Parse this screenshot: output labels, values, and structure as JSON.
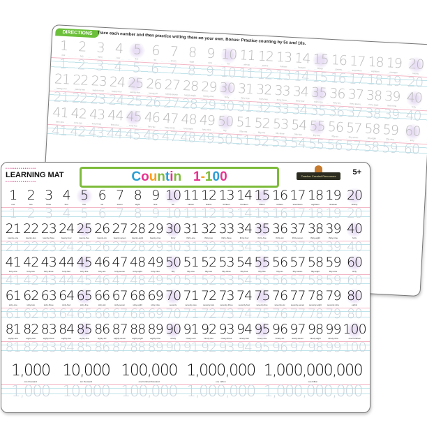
{
  "back_mat": {
    "directions_label": "DIRECTIONS",
    "directions_text": "Trace each number and then practice writing them on your own. Bonus: Practice counting by 5s and 10s."
  },
  "front_mat": {
    "brand_label": "LEARNING MAT",
    "title": "Counting 1-100",
    "title_letter_colors": [
      "#2a9fd6",
      "#e8318f",
      "#f7a21b",
      "#7dbb3a",
      "#2a9fd6",
      "#e8318f",
      "#7dbb3a",
      "#ffffff",
      "#2a9fd6",
      "#e8318f",
      "#f7a21b",
      "#7dbb3a",
      "#2a9fd6",
      "#e8318f"
    ],
    "publisher_logo": "Teacher Created Resources",
    "age": "5+"
  },
  "numbers": [
    "one",
    "two",
    "three",
    "four",
    "five",
    "six",
    "seven",
    "eight",
    "nine",
    "ten",
    "eleven",
    "twelve",
    "thirteen",
    "fourteen",
    "fifteen",
    "sixteen",
    "seventeen",
    "eighteen",
    "nineteen",
    "twenty",
    "twenty-one",
    "twenty-two",
    "twenty-three",
    "twenty-four",
    "twenty-five",
    "twenty-six",
    "twenty-seven",
    "twenty-eight",
    "twenty-nine",
    "thirty",
    "thirty-one",
    "thirty-two",
    "thirty-three",
    "thirty-four",
    "thirty-five",
    "thirty-six",
    "thirty-seven",
    "thirty-eight",
    "thirty-nine",
    "forty",
    "forty-one",
    "forty-two",
    "forty-three",
    "forty-four",
    "forty-five",
    "forty-six",
    "forty-seven",
    "forty-eight",
    "forty-nine",
    "fifty",
    "fifty-one",
    "fifty-two",
    "fifty-three",
    "fifty-four",
    "fifty-five",
    "fifty-six",
    "fifty-seven",
    "fifty-eight",
    "fifty-nine",
    "sixty",
    "sixty-one",
    "sixty-two",
    "sixty-three",
    "sixty-four",
    "sixty-five",
    "sixty-six",
    "sixty-seven",
    "sixty-eight",
    "sixty-nine",
    "seventy",
    "seventy-one",
    "seventy-two",
    "seventy-three",
    "seventy-four",
    "seventy-five",
    "seventy-six",
    "seventy-seven",
    "seventy-eight",
    "seventy-nine",
    "eighty",
    "eighty-one",
    "eighty-two",
    "eighty-three",
    "eighty-four",
    "eighty-five",
    "eighty-six",
    "eighty-seven",
    "eighty-eight",
    "eighty-nine",
    "ninety",
    "ninety-one",
    "ninety-two",
    "ninety-three",
    "ninety-four",
    "ninety-five",
    "ninety-six",
    "ninety-seven",
    "ninety-eight",
    "ninety-nine",
    "one hundred"
  ],
  "large_numbers": [
    {
      "value": "1,000",
      "word": "one thousand"
    },
    {
      "value": "10,000",
      "word": "ten thousand"
    },
    {
      "value": "100,000",
      "word": "one hundred thousand"
    },
    {
      "value": "1,000,000",
      "word": "one million"
    },
    {
      "value": "1,000,000,000",
      "word": "one billion"
    }
  ],
  "colors": {
    "accent_green": "#7dbb3a",
    "highlight_purple": "#e9dff5",
    "trace_gray": "#c9d4dc"
  }
}
